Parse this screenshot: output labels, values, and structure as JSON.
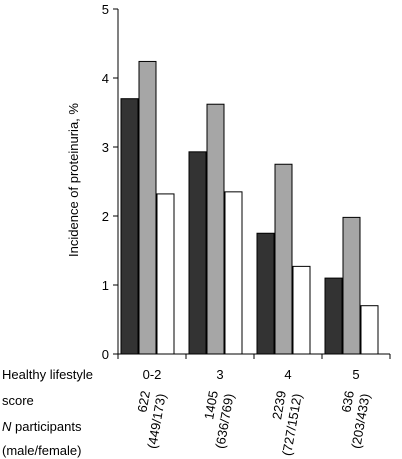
{
  "chart_data": {
    "type": "bar",
    "ylabel": "Incidence of proteinuria, %",
    "ylim": [
      0,
      5
    ],
    "yticks": [
      "0",
      "1",
      "2",
      "3",
      "4",
      "5"
    ],
    "categories": [
      "0-2",
      "3",
      "4",
      "5"
    ],
    "n_labels": [
      "622 (449/173)",
      "1405 (636/769)",
      "2239 (727/1512)",
      "636 (203/433)"
    ],
    "series": [
      {
        "color": "#333333",
        "values": [
          3.7,
          2.93,
          1.75,
          1.1
        ]
      },
      {
        "color": "#a6a6a6",
        "values": [
          4.24,
          3.62,
          2.75,
          1.98
        ]
      },
      {
        "color": "#ffffff",
        "values": [
          2.32,
          2.35,
          1.27,
          0.7
        ]
      }
    ],
    "row_labels": {
      "score_line1": "Healthy lifestyle",
      "score_line2": "score",
      "n_italic": "N",
      "n_rest": " participants",
      "n_line2": "(male/female)"
    }
  }
}
